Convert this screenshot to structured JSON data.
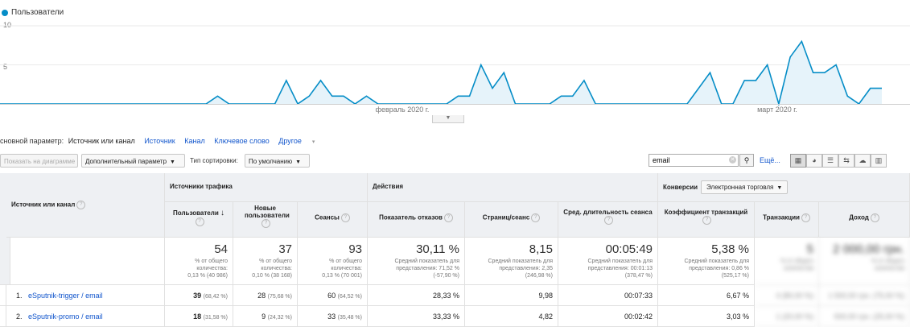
{
  "chart": {
    "legend": "Пользователи",
    "y_ticks": [
      "10",
      "5"
    ],
    "x_ticks": [
      "февраль 2020 г.",
      "март 2020 г."
    ],
    "line_color": "#058dc7"
  },
  "chart_data": {
    "type": "area",
    "series": [
      {
        "name": "Пользователи",
        "values": [
          0,
          0,
          0,
          0,
          0,
          0,
          0,
          0,
          0,
          0,
          0,
          0,
          0,
          0,
          0,
          0,
          0,
          0,
          0,
          1,
          0,
          0,
          0,
          0,
          0,
          3,
          0,
          1,
          3,
          1,
          1,
          0,
          1,
          0,
          0,
          0,
          0,
          0,
          0,
          0,
          1,
          1,
          5,
          2,
          4,
          0,
          0,
          0,
          0,
          1,
          1,
          3,
          0,
          0,
          0,
          0,
          0,
          0,
          0,
          0,
          0,
          2,
          4,
          0,
          0,
          3,
          3,
          5,
          0,
          6,
          8,
          4,
          4,
          5,
          1,
          0,
          2,
          2
        ]
      }
    ],
    "ylim": [
      0,
      10
    ]
  },
  "primary_dimension": {
    "label": "сновной параметр:",
    "active": "Источник или канал",
    "links": [
      "Источник",
      "Канал",
      "Ключевое слово"
    ],
    "other": "Другое"
  },
  "toolbar": {
    "plot_rows": "Показать на диаграмме",
    "secondary_dim": "Дополнительный параметр",
    "sort_label": "Тип сортировки:",
    "sort_value": "По умолчанию",
    "search_value": "email",
    "more": "Ещё...",
    "view_icons": [
      "table-view-icon",
      "pie-view-icon",
      "performance-view-icon",
      "comparison-view-icon",
      "term-cloud-view-icon",
      "pivot-view-icon"
    ]
  },
  "table": {
    "dim_header": "Источник или канал",
    "groups": {
      "acquisition": "Источники трафика",
      "behavior": "Действия",
      "conversions": "Конверсии",
      "conversion_select": "Электронная торговля"
    },
    "columns": [
      "Пользователи",
      "Новые пользователи",
      "Сеансы",
      "Показатель отказов",
      "Страниц/сеанс",
      "Сред. длительность сеанса",
      "Коэффициент транзакций",
      "Транзакции",
      "Доход"
    ],
    "totals": [
      {
        "value": "54",
        "sub": [
          "% от общего",
          "количества:",
          "0,13 % (40 986)"
        ]
      },
      {
        "value": "37",
        "sub": [
          "% от общего",
          "количества:",
          "0,10 % (38 168)"
        ]
      },
      {
        "value": "93",
        "sub": [
          "% от общего",
          "количества:",
          "0,13 % (70 001)"
        ]
      },
      {
        "value": "30,11 %",
        "sub": [
          "Средний показатель для",
          "представления: 71,52 %",
          "(-57,90 %)"
        ]
      },
      {
        "value": "8,15",
        "sub": [
          "Средний показатель для",
          "представления: 2,35",
          "(246,98 %)"
        ]
      },
      {
        "value": "00:05:49",
        "sub": [
          "Средний показатель для",
          "представления: 00:01:13",
          "(378,47 %)"
        ]
      },
      {
        "value": "5,38 %",
        "sub": [
          "Средний показатель для",
          "представления: 0,86 %",
          "(525,17 %)"
        ]
      },
      {
        "value": "5",
        "sub": [
          "% от общего",
          "количества",
          ""
        ]
      },
      {
        "value": "2 000,00 грн.",
        "sub": [
          "% от общего",
          "количества",
          ""
        ]
      }
    ],
    "rows": [
      {
        "index": "1.",
        "source": "eSputnik-trigger / email",
        "users": "39",
        "users_pct": "(68,42 %)",
        "new_users": "28",
        "new_users_pct": "(75,68 %)",
        "sessions": "60",
        "sessions_pct": "(64,52 %)",
        "bounce": "28,33 %",
        "pages": "9,98",
        "duration": "00:07:33",
        "conv": "6,67 %",
        "trans": "4 (80,00 %)",
        "revenue": "1 500,00 грн. (75,00 %)"
      },
      {
        "index": "2.",
        "source": "eSputnik-promo / email",
        "users": "18",
        "users_pct": "(31,58 %)",
        "new_users": "9",
        "new_users_pct": "(24,32 %)",
        "sessions": "33",
        "sessions_pct": "(35,48 %)",
        "bounce": "33,33 %",
        "pages": "4,82",
        "duration": "00:02:42",
        "conv": "3,03 %",
        "trans": "1 (20,00 %)",
        "revenue": "500,00 грн. (25,00 %)"
      }
    ]
  }
}
